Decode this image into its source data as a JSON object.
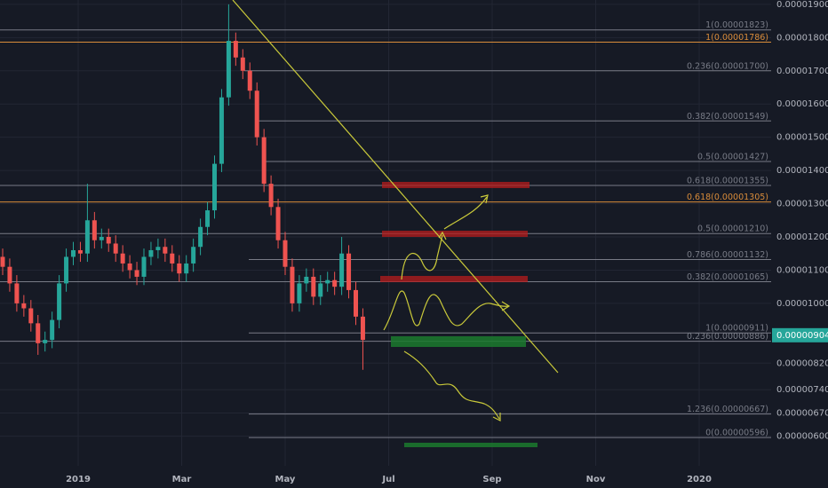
{
  "chart_data": {
    "type": "candlestick",
    "up_color": "#26a69a",
    "down_color": "#ef5350",
    "open": [
      1.14e-05,
      1.11e-05,
      1.06e-05,
      1e-05,
      9.85e-06,
      9.4e-06,
      8.8e-06,
      8.9e-06,
      9.5e-06,
      1.06e-05,
      1.14e-05,
      1.16e-05,
      1.15e-05,
      1.25e-05,
      1.19e-05,
      1.2e-05,
      1.18e-05,
      1.15e-05,
      1.12e-05,
      1.1e-05,
      1.08e-05,
      1.14e-05,
      1.16e-05,
      1.17e-05,
      1.15e-05,
      1.12e-05,
      1.09e-05,
      1.12e-05,
      1.17e-05,
      1.23e-05,
      1.28e-05,
      1.42e-05,
      1.62e-05,
      1.79e-05,
      1.74e-05,
      1.7e-05,
      1.64e-05,
      1.5e-05,
      1.36e-05,
      1.29e-05,
      1.19e-05,
      1.11e-05,
      1e-05,
      1.06e-05,
      1.08e-05,
      1.02e-05,
      1.06e-05,
      1.07e-05,
      1.05e-05,
      1.15e-05,
      1.04e-05,
      9.6e-06
    ],
    "high": [
      1.165e-05,
      1.135e-05,
      1.085e-05,
      1.025e-05,
      1.01e-05,
      9.65e-06,
      9.15e-06,
      9.75e-06,
      1.085e-05,
      1.165e-05,
      1.185e-05,
      1.185e-05,
      1.36e-05,
      1.275e-05,
      1.225e-05,
      1.225e-05,
      1.205e-05,
      1.175e-05,
      1.145e-05,
      1.125e-05,
      1.165e-05,
      1.185e-05,
      1.195e-05,
      1.195e-05,
      1.175e-05,
      1.145e-05,
      1.145e-05,
      1.195e-05,
      1.255e-05,
      1.305e-05,
      1.445e-05,
      1.645e-05,
      1.9e-05,
      1.815e-05,
      1.765e-05,
      1.725e-05,
      1.665e-05,
      1.525e-05,
      1.385e-05,
      1.315e-05,
      1.215e-05,
      1.135e-05,
      1.085e-05,
      1.105e-05,
      1.105e-05,
      1.085e-05,
      1.095e-05,
      1.095e-05,
      1.2e-05,
      1.175e-05,
      1.065e-05,
      9.85e-06
    ],
    "low": [
      1.085e-05,
      1.035e-05,
      9.75e-06,
      9.6e-06,
      9.15e-06,
      8.45e-06,
      8.55e-06,
      8.65e-06,
      9.25e-06,
      1.035e-05,
      1.115e-05,
      1.125e-05,
      1.125e-05,
      1.165e-05,
      1.165e-05,
      1.155e-05,
      1.125e-05,
      1.095e-05,
      1.075e-05,
      1.055e-05,
      1.055e-05,
      1.115e-05,
      1.135e-05,
      1.125e-05,
      1.095e-05,
      1.065e-05,
      1.065e-05,
      1.095e-05,
      1.145e-05,
      1.205e-05,
      1.255e-05,
      1.395e-05,
      1.595e-05,
      1.715e-05,
      1.675e-05,
      1.615e-05,
      1.475e-05,
      1.335e-05,
      1.265e-05,
      1.165e-05,
      1.085e-05,
      9.75e-06,
      9.75e-06,
      1.035e-05,
      9.95e-06,
      9.95e-06,
      1.035e-05,
      1.025e-05,
      1.025e-05,
      1.015e-05,
      9.35e-06,
      8e-06
    ],
    "close": [
      1.11e-05,
      1.06e-05,
      1e-05,
      9.85e-06,
      9.4e-06,
      8.8e-06,
      8.9e-06,
      9.5e-06,
      1.06e-05,
      1.14e-05,
      1.16e-05,
      1.15e-05,
      1.25e-05,
      1.19e-05,
      1.2e-05,
      1.18e-05,
      1.15e-05,
      1.12e-05,
      1.1e-05,
      1.08e-05,
      1.14e-05,
      1.16e-05,
      1.17e-05,
      1.15e-05,
      1.12e-05,
      1.09e-05,
      1.12e-05,
      1.17e-05,
      1.23e-05,
      1.28e-05,
      1.42e-05,
      1.62e-05,
      1.79e-05,
      1.74e-05,
      1.7e-05,
      1.64e-05,
      1.5e-05,
      1.36e-05,
      1.29e-05,
      1.19e-05,
      1.11e-05,
      1e-05,
      1.06e-05,
      1.08e-05,
      1.02e-05,
      1.06e-05,
      1.07e-05,
      1.05e-05,
      1.15e-05,
      1.04e-05,
      9.6e-06,
      8.9e-06
    ],
    "x_labels": [
      "2019",
      "Mar",
      "May",
      "Jul",
      "Sep",
      "Nov",
      "2020"
    ],
    "ylim": [
      5.11e-06,
      1.913e-05
    ],
    "yticks": [
      {
        "value": 1.9e-05,
        "label": "0.00001900"
      },
      {
        "value": 1.8e-05,
        "label": "0.00001800"
      },
      {
        "value": 1.7e-05,
        "label": "0.00001700"
      },
      {
        "value": 1.6e-05,
        "label": "0.00001600"
      },
      {
        "value": 1.5e-05,
        "label": "0.00001500"
      },
      {
        "value": 1.4e-05,
        "label": "0.00001400"
      },
      {
        "value": 1.3e-05,
        "label": "0.00001300"
      },
      {
        "value": 1.2e-05,
        "label": "0.00001200"
      },
      {
        "value": 1.1e-05,
        "label": "0.00001100"
      },
      {
        "value": 1e-05,
        "label": "0.00001000"
      },
      {
        "value": 8.2e-06,
        "label": "0.00000820"
      },
      {
        "value": 7.4e-06,
        "label": "0.00000740"
      },
      {
        "value": 6.7e-06,
        "label": "0.00000670"
      },
      {
        "value": 6e-06,
        "label": "0.00000600"
      }
    ],
    "grid": true,
    "last_price": {
      "value": 9.04e-06,
      "label": "0.00000904",
      "color": "#26a69a"
    },
    "fib_levels": [
      {
        "value": 1.823e-05,
        "label": "1(0.00001823)",
        "color": "#787b86"
      },
      {
        "value": 1.786e-05,
        "label": "1(0.00001786)",
        "color": "#d98c3a"
      },
      {
        "value": 1.7e-05,
        "label": "0.236(0.00001700)",
        "color": "#787b86"
      },
      {
        "value": 1.549e-05,
        "label": "0.382(0.00001549)",
        "color": "#787b86"
      },
      {
        "value": 1.427e-05,
        "label": "0.5(0.00001427)",
        "color": "#787b86"
      },
      {
        "value": 1.355e-05,
        "label": "0.618(0.00001355)",
        "color": "#787b86"
      },
      {
        "value": 1.305e-05,
        "label": "0.618(0.00001305)",
        "color": "#d98c3a"
      },
      {
        "value": 1.21e-05,
        "label": "0.5(0.00001210)",
        "color": "#787b86"
      },
      {
        "value": 1.132e-05,
        "label": "0.786(0.00001132)",
        "color": "#787b86"
      },
      {
        "value": 1.065e-05,
        "label": "0.382(0.00001065)",
        "color": "#787b86"
      },
      {
        "value": 9.11e-06,
        "label": "1(0.00000911)",
        "color": "#787b86"
      },
      {
        "value": 8.86e-06,
        "label": "0.236(0.00000886)",
        "color": "#787b86"
      },
      {
        "value": 6.67e-06,
        "label": "1.236(0.00000667)",
        "color": "#787b86"
      },
      {
        "value": 5.96e-06,
        "label": "0(0.00000596)",
        "color": "#787b86"
      }
    ]
  }
}
